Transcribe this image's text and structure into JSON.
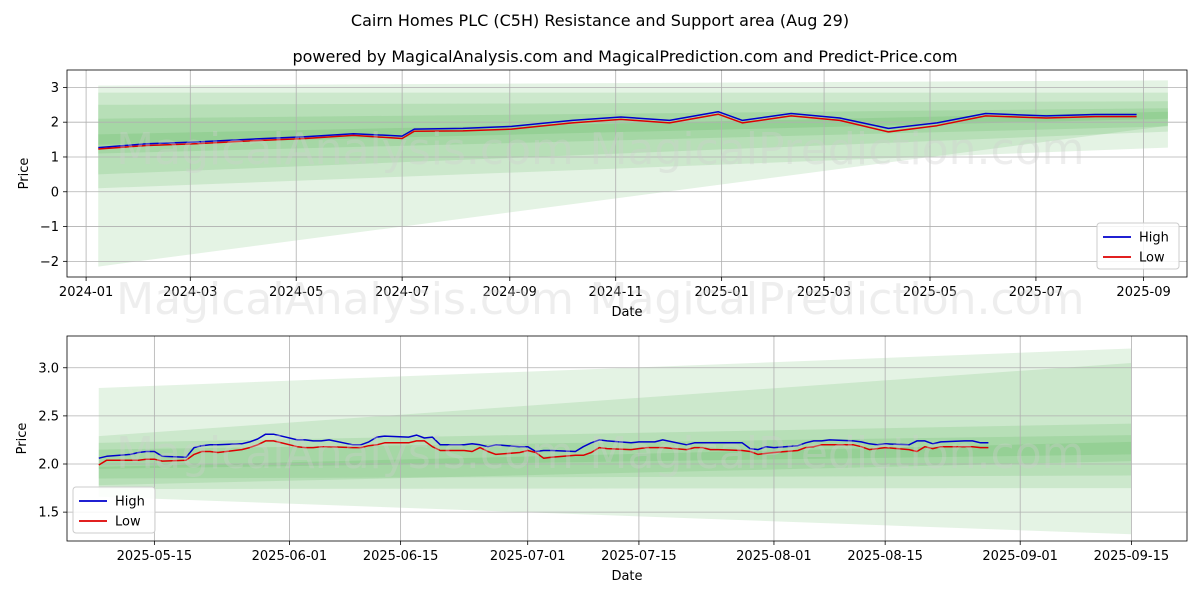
{
  "title": "Cairn Homes PLC (C5H) Resistance and Support area (Aug 29)",
  "subtitle": "powered by MagicalAnalysis.com and MagicalPrediction.com and Predict-Price.com",
  "watermarks": [
    "MagicalAnalysis.com",
    "MagicalPrediction.com"
  ],
  "colors": {
    "high": "#0000cc",
    "low": "#dd0000",
    "band": "#2ca02c",
    "grid": "#b0b0b0"
  },
  "chart_data": [
    {
      "type": "line",
      "xlabel": "Date",
      "ylabel": "Price",
      "xlim": [
        "2023-12-21",
        "2025-09-26"
      ],
      "ylim": [
        -2.45,
        3.5
      ],
      "x_ticks": [
        "2024-01-01",
        "2024-03-01",
        "2024-05-01",
        "2024-07-01",
        "2024-09-01",
        "2024-11-01",
        "2025-01-01",
        "2025-03-01",
        "2025-05-01",
        "2025-07-01",
        "2025-09-01"
      ],
      "x_tick_labels": [
        "2024-01",
        "2024-03",
        "2024-05",
        "2024-07",
        "2024-09",
        "2024-11",
        "2025-01",
        "2025-03",
        "2025-05",
        "2025-07",
        "2025-09"
      ],
      "y_ticks": [
        -2,
        -1,
        0,
        1,
        2,
        3
      ],
      "y_tick_labels": [
        "−2",
        "−1",
        "0",
        "1",
        "2",
        "3"
      ],
      "grid": true,
      "legend_position": "bottom-right",
      "series": [
        {
          "name": "High",
          "x": [
            "2024-01-08",
            "2024-02-05",
            "2024-03-04",
            "2024-04-08",
            "2024-05-06",
            "2024-06-03",
            "2024-07-01",
            "2024-07-08",
            "2024-08-05",
            "2024-09-02",
            "2024-10-07",
            "2024-11-04",
            "2024-12-02",
            "2024-12-30",
            "2025-01-13",
            "2025-02-10",
            "2025-03-10",
            "2025-04-07",
            "2025-05-05",
            "2025-06-02",
            "2025-07-07",
            "2025-08-04",
            "2025-08-28"
          ],
          "values": [
            1.27,
            1.38,
            1.43,
            1.52,
            1.58,
            1.67,
            1.6,
            1.8,
            1.82,
            1.88,
            2.05,
            2.15,
            2.05,
            2.3,
            2.05,
            2.25,
            2.12,
            1.82,
            1.98,
            2.25,
            2.18,
            2.22,
            2.22
          ]
        },
        {
          "name": "Low",
          "x": [
            "2024-01-08",
            "2024-02-05",
            "2024-03-04",
            "2024-04-08",
            "2024-05-06",
            "2024-06-03",
            "2024-07-01",
            "2024-07-08",
            "2024-08-05",
            "2024-09-02",
            "2024-10-07",
            "2024-11-04",
            "2024-12-02",
            "2024-12-30",
            "2025-01-13",
            "2025-02-10",
            "2025-03-10",
            "2025-04-07",
            "2025-05-05",
            "2025-06-02",
            "2025-07-07",
            "2025-08-04",
            "2025-08-28"
          ],
          "values": [
            1.23,
            1.33,
            1.38,
            1.47,
            1.53,
            1.62,
            1.53,
            1.74,
            1.75,
            1.8,
            1.98,
            2.08,
            1.98,
            2.23,
            1.98,
            2.18,
            2.05,
            1.72,
            1.9,
            2.18,
            2.12,
            2.16,
            2.16
          ]
        }
      ],
      "bands": [
        {
          "x": [
            "2024-01-08",
            "2025-09-15"
          ],
          "lower": [
            -2.15,
            1.9
          ],
          "upper": [
            3.05,
            3.2
          ]
        },
        {
          "x": [
            "2024-01-08",
            "2025-09-15"
          ],
          "lower": [
            0.1,
            1.27
          ],
          "upper": [
            2.85,
            2.85
          ]
        },
        {
          "x": [
            "2024-01-08",
            "2025-09-15"
          ],
          "lower": [
            0.5,
            1.73
          ],
          "upper": [
            2.5,
            2.6
          ]
        },
        {
          "x": [
            "2024-01-08",
            "2025-09-15"
          ],
          "lower": [
            1.1,
            1.88
          ],
          "upper": [
            2.1,
            2.4
          ]
        },
        {
          "x": [
            "2024-01-08",
            "2025-09-15"
          ],
          "lower": [
            1.35,
            2.1
          ],
          "upper": [
            1.65,
            2.3
          ]
        }
      ]
    },
    {
      "type": "line",
      "xlabel": "Date",
      "ylabel": "Price",
      "xlim": [
        "2025-05-04",
        "2025-09-22"
      ],
      "ylim": [
        1.2,
        3.33
      ],
      "x_ticks": [
        "2025-05-15",
        "2025-06-01",
        "2025-06-15",
        "2025-07-01",
        "2025-07-15",
        "2025-08-01",
        "2025-08-15",
        "2025-09-01",
        "2025-09-15"
      ],
      "x_tick_labels": [
        "2025-05-15",
        "2025-06-01",
        "2025-06-15",
        "2025-07-01",
        "2025-07-15",
        "2025-08-01",
        "2025-08-15",
        "2025-09-01",
        "2025-09-15"
      ],
      "y_ticks": [
        1.5,
        2.0,
        2.5,
        3.0
      ],
      "y_tick_labels": [
        "1.5",
        "2.0",
        "2.5",
        "3.0"
      ],
      "grid": true,
      "legend_position": "bottom-left",
      "series": [
        {
          "name": "High",
          "x": [
            "2025-05-08",
            "2025-05-09",
            "2025-05-12",
            "2025-05-13",
            "2025-05-14",
            "2025-05-15",
            "2025-05-16",
            "2025-05-19",
            "2025-05-20",
            "2025-05-21",
            "2025-05-22",
            "2025-05-23",
            "2025-05-26",
            "2025-05-27",
            "2025-05-28",
            "2025-05-29",
            "2025-05-30",
            "2025-06-02",
            "2025-06-03",
            "2025-06-04",
            "2025-06-05",
            "2025-06-06",
            "2025-06-09",
            "2025-06-10",
            "2025-06-11",
            "2025-06-12",
            "2025-06-13",
            "2025-06-16",
            "2025-06-17",
            "2025-06-18",
            "2025-06-19",
            "2025-06-20",
            "2025-06-23",
            "2025-06-24",
            "2025-06-25",
            "2025-06-26",
            "2025-06-27",
            "2025-06-30",
            "2025-07-01",
            "2025-07-02",
            "2025-07-03",
            "2025-07-04",
            "2025-07-07",
            "2025-07-08",
            "2025-07-09",
            "2025-07-10",
            "2025-07-11",
            "2025-07-14",
            "2025-07-15",
            "2025-07-16",
            "2025-07-17",
            "2025-07-18",
            "2025-07-21",
            "2025-07-22",
            "2025-07-23",
            "2025-07-24",
            "2025-07-25",
            "2025-07-28",
            "2025-07-29",
            "2025-07-30",
            "2025-07-31",
            "2025-08-01",
            "2025-08-04",
            "2025-08-05",
            "2025-08-06",
            "2025-08-07",
            "2025-08-08",
            "2025-08-11",
            "2025-08-12",
            "2025-08-13",
            "2025-08-14",
            "2025-08-15",
            "2025-08-18",
            "2025-08-19",
            "2025-08-20",
            "2025-08-21",
            "2025-08-22",
            "2025-08-25",
            "2025-08-26",
            "2025-08-27",
            "2025-08-28"
          ],
          "values": [
            2.06,
            2.08,
            2.1,
            2.12,
            2.13,
            2.13,
            2.08,
            2.07,
            2.17,
            2.19,
            2.2,
            2.2,
            2.21,
            2.23,
            2.26,
            2.31,
            2.31,
            2.25,
            2.25,
            2.24,
            2.24,
            2.25,
            2.2,
            2.2,
            2.23,
            2.28,
            2.29,
            2.28,
            2.3,
            2.27,
            2.28,
            2.2,
            2.2,
            2.21,
            2.2,
            2.18,
            2.2,
            2.18,
            2.18,
            2.13,
            2.14,
            2.14,
            2.13,
            2.18,
            2.22,
            2.25,
            2.24,
            2.22,
            2.23,
            2.23,
            2.23,
            2.25,
            2.2,
            2.22,
            2.22,
            2.22,
            2.22,
            2.22,
            2.16,
            2.15,
            2.18,
            2.17,
            2.19,
            2.22,
            2.24,
            2.24,
            2.25,
            2.24,
            2.23,
            2.21,
            2.2,
            2.21,
            2.2,
            2.24,
            2.24,
            2.21,
            2.23,
            2.24,
            2.24,
            2.22,
            2.22
          ]
        },
        {
          "name": "Low",
          "x": [
            "2025-05-08",
            "2025-05-09",
            "2025-05-12",
            "2025-05-13",
            "2025-05-14",
            "2025-05-15",
            "2025-05-16",
            "2025-05-19",
            "2025-05-20",
            "2025-05-21",
            "2025-05-22",
            "2025-05-23",
            "2025-05-26",
            "2025-05-27",
            "2025-05-28",
            "2025-05-29",
            "2025-05-30",
            "2025-06-02",
            "2025-06-03",
            "2025-06-04",
            "2025-06-05",
            "2025-06-06",
            "2025-06-09",
            "2025-06-10",
            "2025-06-11",
            "2025-06-12",
            "2025-06-13",
            "2025-06-16",
            "2025-06-17",
            "2025-06-18",
            "2025-06-19",
            "2025-06-20",
            "2025-06-23",
            "2025-06-24",
            "2025-06-25",
            "2025-06-26",
            "2025-06-27",
            "2025-06-30",
            "2025-07-01",
            "2025-07-02",
            "2025-07-03",
            "2025-07-04",
            "2025-07-07",
            "2025-07-08",
            "2025-07-09",
            "2025-07-10",
            "2025-07-11",
            "2025-07-14",
            "2025-07-15",
            "2025-07-16",
            "2025-07-17",
            "2025-07-18",
            "2025-07-21",
            "2025-07-22",
            "2025-07-23",
            "2025-07-24",
            "2025-07-25",
            "2025-07-28",
            "2025-07-29",
            "2025-07-30",
            "2025-07-31",
            "2025-08-01",
            "2025-08-04",
            "2025-08-05",
            "2025-08-06",
            "2025-08-07",
            "2025-08-08",
            "2025-08-11",
            "2025-08-12",
            "2025-08-13",
            "2025-08-14",
            "2025-08-15",
            "2025-08-18",
            "2025-08-19",
            "2025-08-20",
            "2025-08-21",
            "2025-08-22",
            "2025-08-25",
            "2025-08-26",
            "2025-08-27",
            "2025-08-28"
          ],
          "values": [
            1.99,
            2.04,
            2.04,
            2.04,
            2.05,
            2.05,
            2.03,
            2.04,
            2.1,
            2.13,
            2.13,
            2.12,
            2.15,
            2.17,
            2.2,
            2.24,
            2.24,
            2.18,
            2.17,
            2.17,
            2.18,
            2.18,
            2.17,
            2.17,
            2.19,
            2.2,
            2.22,
            2.22,
            2.24,
            2.24,
            2.18,
            2.14,
            2.14,
            2.13,
            2.17,
            2.13,
            2.1,
            2.12,
            2.14,
            2.12,
            2.06,
            2.07,
            2.09,
            2.09,
            2.12,
            2.17,
            2.16,
            2.15,
            2.16,
            2.17,
            2.17,
            2.17,
            2.15,
            2.17,
            2.17,
            2.15,
            2.15,
            2.14,
            2.13,
            2.1,
            2.11,
            2.12,
            2.14,
            2.17,
            2.18,
            2.2,
            2.2,
            2.2,
            2.18,
            2.15,
            2.16,
            2.17,
            2.15,
            2.13,
            2.18,
            2.16,
            2.18,
            2.18,
            2.18,
            2.17,
            2.17
          ]
        }
      ],
      "bands": [
        {
          "x": [
            "2025-05-08",
            "2025-09-15"
          ],
          "lower": [
            1.66,
            1.27
          ],
          "upper": [
            2.79,
            3.2
          ]
        },
        {
          "x": [
            "2025-05-08",
            "2025-09-15"
          ],
          "lower": [
            1.74,
            1.75
          ],
          "upper": [
            2.29,
            3.05
          ]
        },
        {
          "x": [
            "2025-05-08",
            "2025-09-15"
          ],
          "lower": [
            1.85,
            1.88
          ],
          "upper": [
            2.22,
            2.42
          ]
        },
        {
          "x": [
            "2025-05-08",
            "2025-09-15"
          ],
          "lower": [
            1.95,
            2.1
          ],
          "upper": [
            2.15,
            2.3
          ]
        },
        {
          "x": [
            "2025-05-08",
            "2025-09-15"
          ],
          "lower": [
            1.78,
            2.03
          ],
          "upper": [
            1.97,
            2.23
          ]
        }
      ]
    }
  ]
}
